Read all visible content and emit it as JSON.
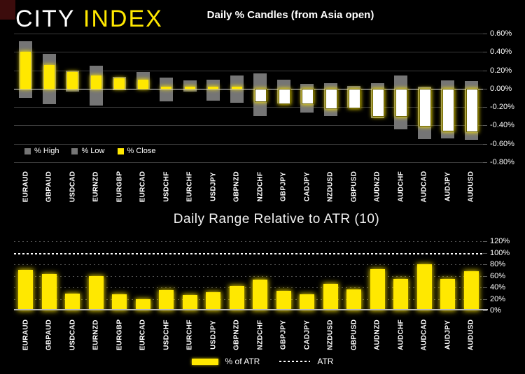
{
  "logo": {
    "city": "CITY",
    "index": "INDEX"
  },
  "colors": {
    "background": "#000000",
    "brand_yellow": "#ffe800",
    "range_gray": "#757575",
    "negative_close_fill": "#ffffff",
    "grid": "#3a3a3a",
    "zero_line": "#e8e8e8",
    "atr_dotted_line": "#ffffff",
    "corner_block": "#3c0c0c",
    "text": "#ffffff"
  },
  "chart_data": [
    {
      "type": "bar",
      "subtype": "high-low-close-candles",
      "title": "Daily % Candles (from Asia open)",
      "categories": [
        "EURAUD",
        "GBPAUD",
        "USDCAD",
        "EURNZD",
        "EURGBP",
        "EURCAD",
        "USDCHF",
        "EURCHF",
        "USDJPY",
        "GBPNZD",
        "NZDCHF",
        "GBPJPY",
        "CADJPY",
        "NZDUSD",
        "GBPUSD",
        "AUDNZD",
        "AUDCHF",
        "AUDCAD",
        "AUDJPY",
        "AUDUSD"
      ],
      "series": [
        {
          "name": "% High",
          "values": [
            0.52,
            0.38,
            0.2,
            0.25,
            0.13,
            0.18,
            0.12,
            0.09,
            0.1,
            0.14,
            0.17,
            0.1,
            0.05,
            0.06,
            0.03,
            0.06,
            0.14,
            0.02,
            0.09,
            0.08
          ]
        },
        {
          "name": "% Low",
          "values": [
            -0.1,
            -0.17,
            -0.03,
            -0.18,
            -0.02,
            -0.01,
            -0.14,
            -0.03,
            -0.13,
            -0.15,
            -0.3,
            -0.16,
            -0.26,
            -0.3,
            -0.21,
            -0.32,
            -0.44,
            -0.55,
            -0.54,
            -0.56
          ]
        },
        {
          "name": "% Close",
          "values": [
            0.4,
            0.26,
            0.18,
            0.14,
            0.11,
            0.1,
            0.01,
            0.01,
            0.01,
            0.0,
            -0.13,
            -0.15,
            -0.15,
            -0.21,
            -0.2,
            -0.29,
            -0.29,
            -0.4,
            -0.45,
            -0.46
          ]
        }
      ],
      "ylim": [
        -0.8,
        0.6
      ],
      "ytick_values": [
        0.6,
        0.4,
        0.2,
        0.0,
        -0.2,
        -0.4,
        -0.6,
        -0.8
      ],
      "ytick_labels": [
        "0.60%",
        "0.40%",
        "0.20%",
        "0.00%",
        "-0.20%",
        "-0.40%",
        "-0.60%",
        "-0.80%"
      ],
      "axis_side": "right",
      "grid": "on",
      "legend_position": "bottom-left"
    },
    {
      "type": "bar",
      "title": "Daily Range Relative to ATR (10)",
      "categories": [
        "EURAUD",
        "GBPAUD",
        "USDCAD",
        "EURNZD",
        "EURGBP",
        "EURCAD",
        "USDCHF",
        "EURCHF",
        "USDJPY",
        "GBPNZD",
        "NZDCHF",
        "GBPJPY",
        "CADJPY",
        "NZDUSD",
        "GBPUSD",
        "AUDNZD",
        "AUDCHF",
        "AUDCAD",
        "AUDJPY",
        "AUDUSD"
      ],
      "series": [
        {
          "name": "% of ATR",
          "values": [
            70,
            63,
            29,
            60,
            28,
            20,
            35,
            27,
            32,
            43,
            53,
            34,
            28,
            46,
            36,
            71,
            55,
            80,
            55,
            68
          ]
        }
      ],
      "reference_line": {
        "name": "ATR",
        "value": 100,
        "style": "dotted"
      },
      "ylim": [
        0,
        120
      ],
      "ytick_values": [
        120,
        100,
        80,
        60,
        40,
        20,
        0
      ],
      "ytick_labels": [
        "120%",
        "100%",
        "80%",
        "60%",
        "40%",
        "20%",
        "0%"
      ],
      "axis_side": "right",
      "grid": "dotted",
      "legend": [
        "% of ATR",
        "ATR"
      ],
      "legend_position": "bottom-center"
    }
  ]
}
